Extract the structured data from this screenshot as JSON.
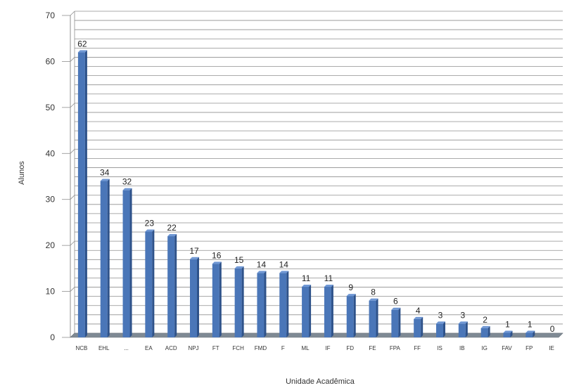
{
  "chart_data": {
    "type": "bar",
    "title": "",
    "xlabel": "Unidade Acadêmica",
    "ylabel": "Alunos",
    "ylim": [
      0,
      70
    ],
    "yticks": [
      0,
      10,
      20,
      30,
      40,
      50,
      60,
      70
    ],
    "grid": true,
    "categories": [
      "NCB",
      "EHL",
      "...",
      "EA",
      "ACD",
      "NPJ",
      "FT",
      "FCH",
      "FMD",
      "F",
      "ML",
      "IF",
      "FD",
      "FE",
      "FPA",
      "FF",
      "IS",
      "IB",
      "IG",
      "FAV",
      "FP",
      "IE"
    ],
    "values": [
      62,
      34,
      32,
      23,
      22,
      17,
      16,
      15,
      14,
      14,
      11,
      11,
      9,
      8,
      6,
      4,
      3,
      3,
      2,
      1,
      1,
      0
    ],
    "colors": {
      "bar": "#4a76b8",
      "bar_dark": "#2e528a",
      "floor": "#7f8a94",
      "grid": "#8f8f8f"
    }
  }
}
